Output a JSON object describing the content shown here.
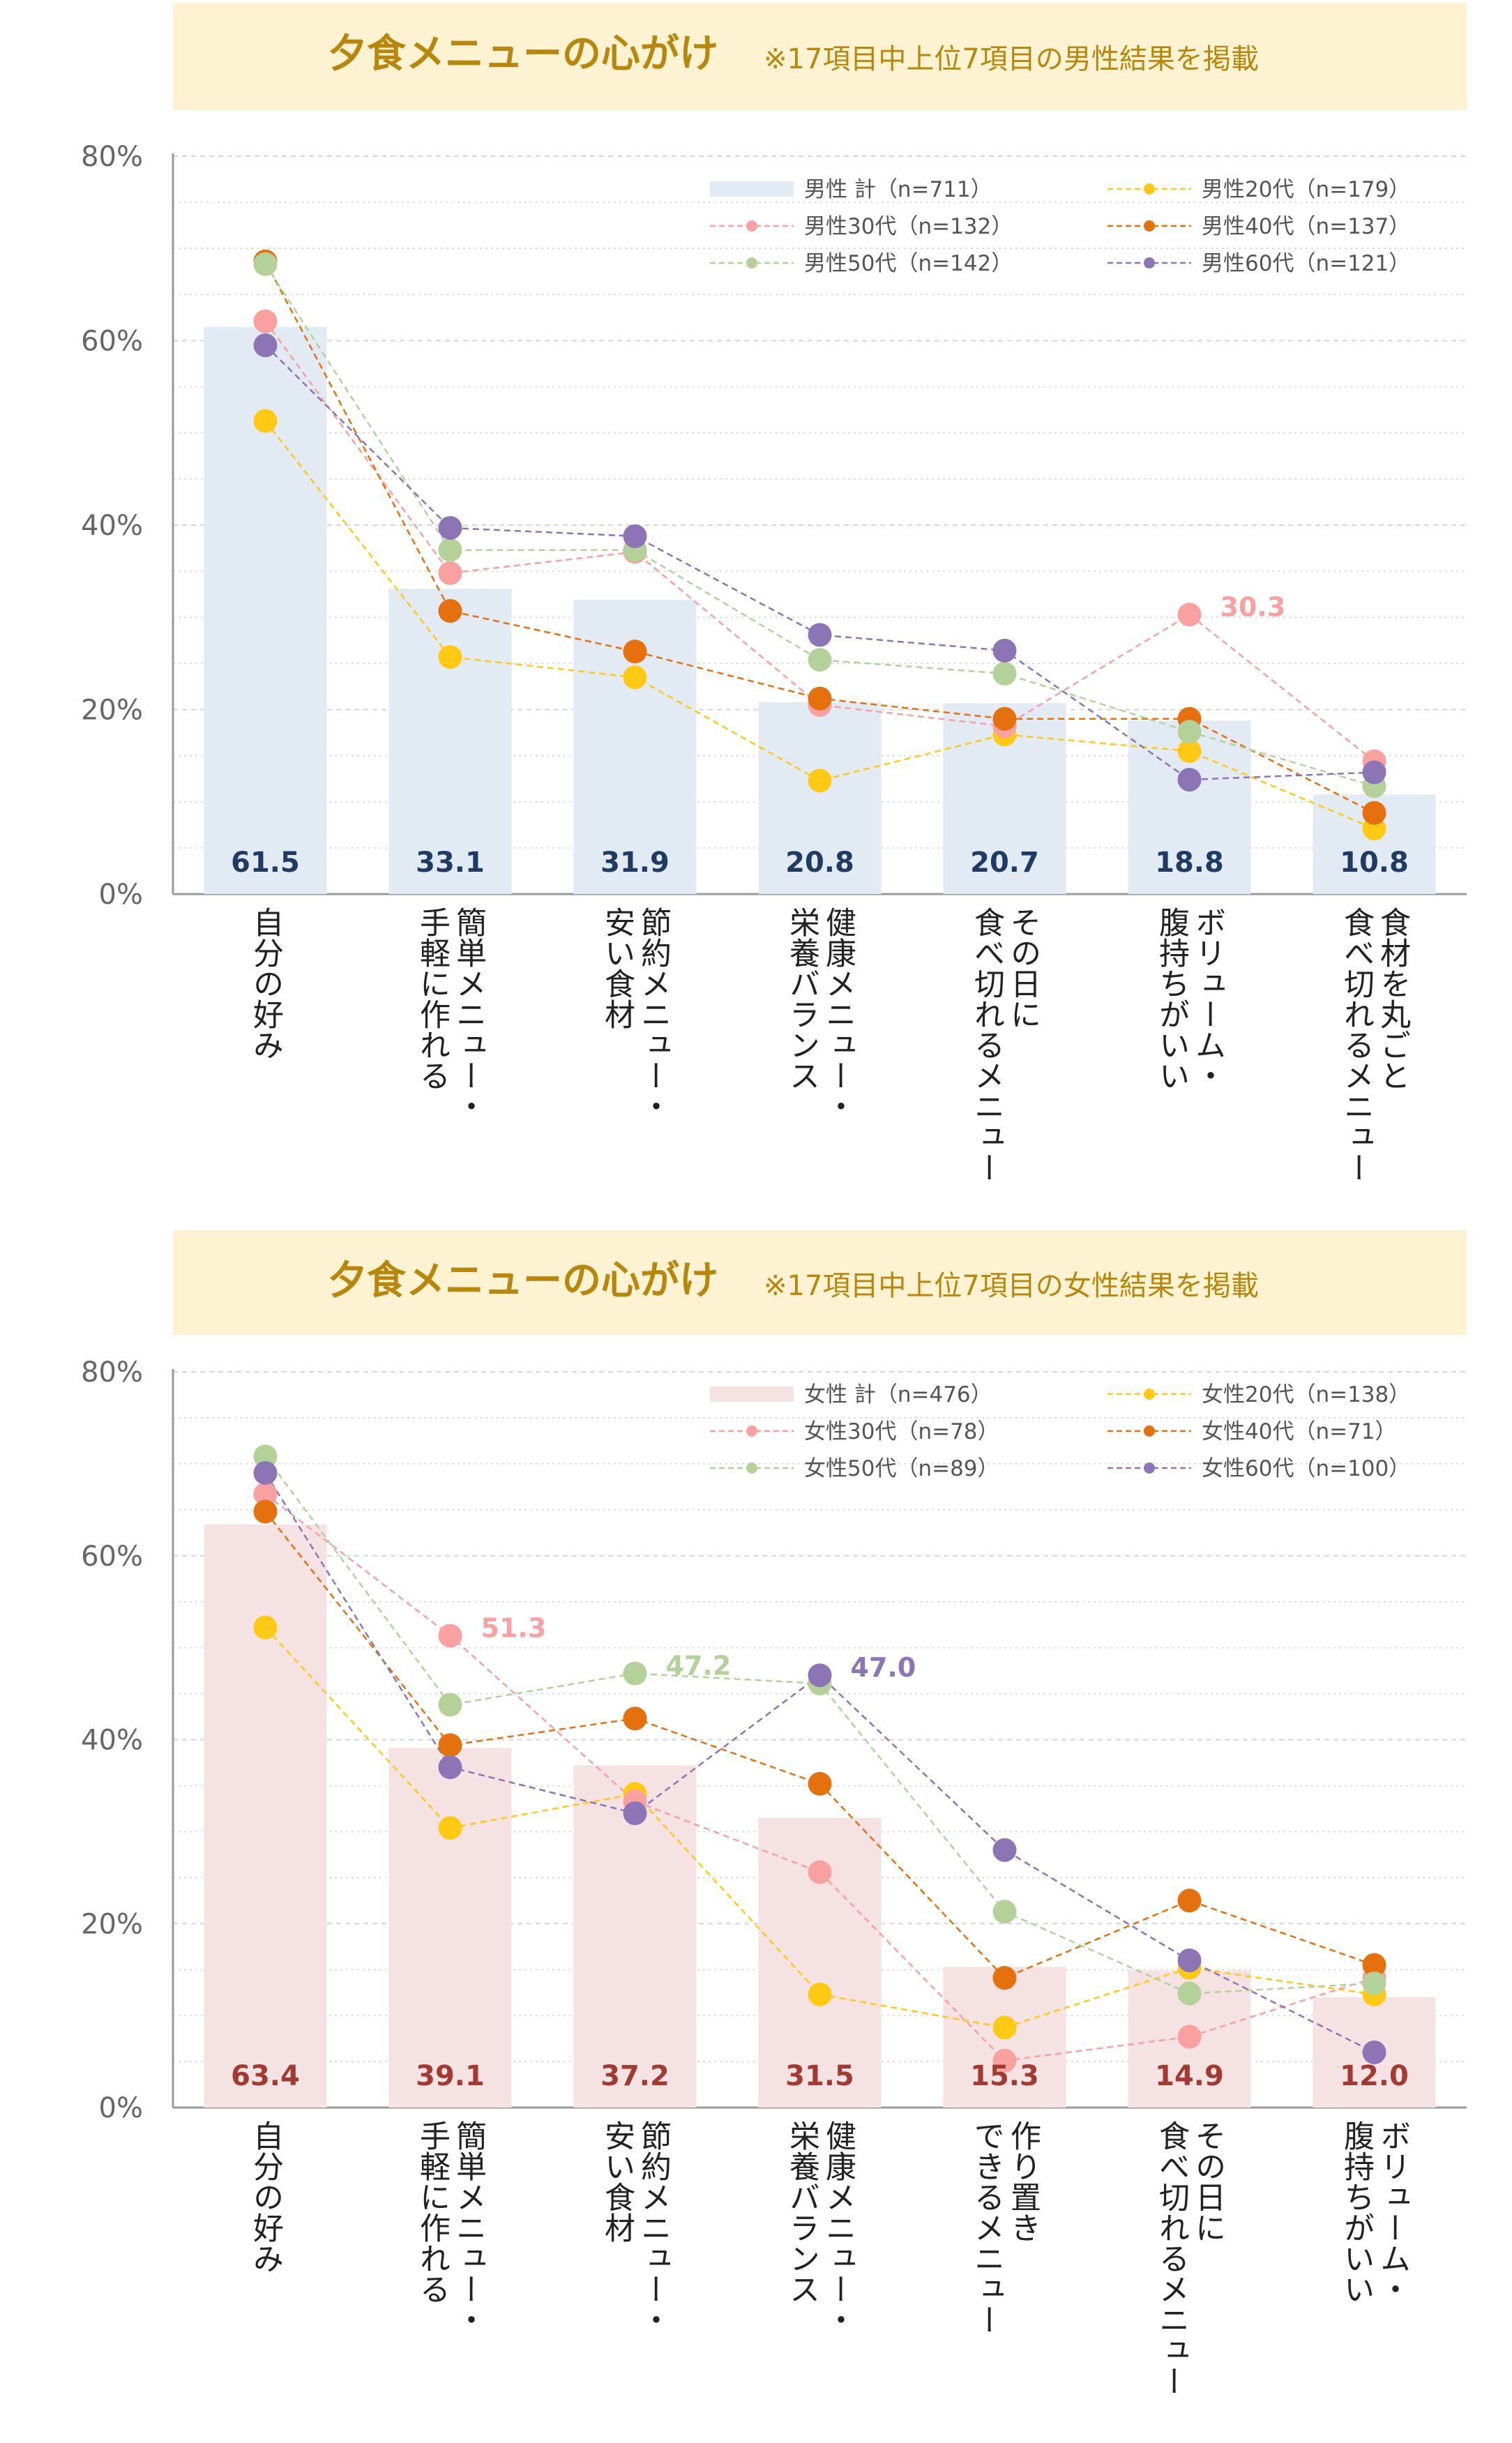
{
  "colors": {
    "title_bg": "#FDF3D2",
    "title_text": "#B8860B",
    "axis": "#9a9a9a",
    "grid": "#d6d6d6",
    "tick": "#666666",
    "male_bar": "#E2EAF4",
    "male_bar_label": "#1F3B63",
    "female_bar": "#F5E2E2",
    "female_bar_label": "#A23A32",
    "age20": "#FFC914",
    "age30": "#F9A0A0",
    "age40": "#E5700E",
    "age50": "#B5D19A",
    "age60": "#8C74B5"
  },
  "chart_data": [
    {
      "type": "bar",
      "title": "夕食メニューの心がけ",
      "subtitle": "※17項目中上位7項目の男性結果を掲載",
      "y_ticks": [
        "0%",
        "20%",
        "40%",
        "60%",
        "80%"
      ],
      "ylim": [
        0,
        80
      ],
      "categories": [
        [
          "自分の好み"
        ],
        [
          "簡単メニュー・",
          "手軽に作れる"
        ],
        [
          "節約メニュー・",
          "安い食材"
        ],
        [
          "健康メニュー・",
          "栄養バランス"
        ],
        [
          "その日に",
          "食べ切れるメニュー"
        ],
        [
          "ボリューム・",
          "腹持ちがいい"
        ],
        [
          "食材を丸ごと",
          "食べ切れるメニュー"
        ]
      ],
      "bar_series": {
        "name": "男性 計（n=711）",
        "color_key": "male_bar",
        "label_color_key": "male_bar_label",
        "values": [
          61.5,
          33.1,
          31.9,
          20.8,
          20.7,
          18.8,
          10.8
        ],
        "labels": [
          "61.5",
          "33.1",
          "31.9",
          "20.8",
          "20.7",
          "18.8",
          "10.8"
        ]
      },
      "line_series": [
        {
          "name": "男性20代（n=179）",
          "color_key": "age20",
          "values": [
            51.3,
            25.7,
            23.5,
            12.3,
            17.3,
            15.5,
            7.1
          ]
        },
        {
          "name": "男性30代（n=132）",
          "color_key": "age30",
          "values": [
            62.1,
            34.8,
            37.1,
            20.5,
            18.2,
            30.3,
            14.4
          ]
        },
        {
          "name": "男性40代（n=137）",
          "color_key": "age40",
          "values": [
            68.6,
            30.7,
            26.3,
            21.2,
            19.0,
            19.0,
            8.8
          ]
        },
        {
          "name": "男性50代（n=142）",
          "color_key": "age50",
          "values": [
            68.3,
            37.3,
            37.3,
            25.4,
            23.9,
            17.6,
            11.7
          ]
        },
        {
          "name": "男性60代（n=121）",
          "color_key": "age60",
          "values": [
            59.5,
            39.7,
            38.8,
            28.1,
            26.4,
            12.4,
            13.2
          ]
        }
      ],
      "annotations": [
        {
          "text": "30.3",
          "series": 1,
          "index": 5,
          "color_key": "age30"
        }
      ]
    },
    {
      "type": "bar",
      "title": "夕食メニューの心がけ",
      "subtitle": "※17項目中上位7項目の女性結果を掲載",
      "y_ticks": [
        "0%",
        "20%",
        "40%",
        "60%",
        "80%"
      ],
      "ylim": [
        0,
        80
      ],
      "categories": [
        [
          "自分の好み"
        ],
        [
          "簡単メニュー・",
          "手軽に作れる"
        ],
        [
          "節約メニュー・",
          "安い食材"
        ],
        [
          "健康メニュー・",
          "栄養バランス"
        ],
        [
          "作り置き",
          "できるメニュー"
        ],
        [
          "その日に",
          "食べ切れるメニュー"
        ],
        [
          "ボリューム・",
          "腹持ちがいい"
        ]
      ],
      "bar_series": {
        "name": "女性 計（n=476）",
        "color_key": "female_bar",
        "label_color_key": "female_bar_label",
        "values": [
          63.4,
          39.1,
          37.2,
          31.5,
          15.3,
          14.9,
          12.0
        ],
        "labels": [
          "63.4",
          "39.1",
          "37.2",
          "31.5",
          "15.3",
          "14.9",
          "12.0"
        ]
      },
      "line_series": [
        {
          "name": "女性20代（n=138）",
          "color_key": "age20",
          "values": [
            52.2,
            30.4,
            34.1,
            12.3,
            8.7,
            15.2,
            12.3
          ]
        },
        {
          "name": "女性30代（n=78）",
          "color_key": "age30",
          "values": [
            66.7,
            51.3,
            33.3,
            25.6,
            5.1,
            7.7,
            14.1
          ]
        },
        {
          "name": "女性40代（n=71）",
          "color_key": "age40",
          "values": [
            64.8,
            39.4,
            42.3,
            35.2,
            14.1,
            22.5,
            15.5
          ]
        },
        {
          "name": "女性50代（n=89）",
          "color_key": "age50",
          "values": [
            70.8,
            43.8,
            47.2,
            46.1,
            21.3,
            12.4,
            13.5
          ]
        },
        {
          "name": "女性60代（n=100）",
          "color_key": "age60",
          "values": [
            69.0,
            37.0,
            32.0,
            47.0,
            28.0,
            16.0,
            6.0
          ]
        }
      ],
      "annotations": [
        {
          "text": "51.3",
          "series": 1,
          "index": 1,
          "color_key": "age30"
        },
        {
          "text": "47.2",
          "series": 3,
          "index": 2,
          "color_key": "age50"
        },
        {
          "text": "47.0",
          "series": 4,
          "index": 3,
          "color_key": "age60"
        }
      ]
    }
  ]
}
